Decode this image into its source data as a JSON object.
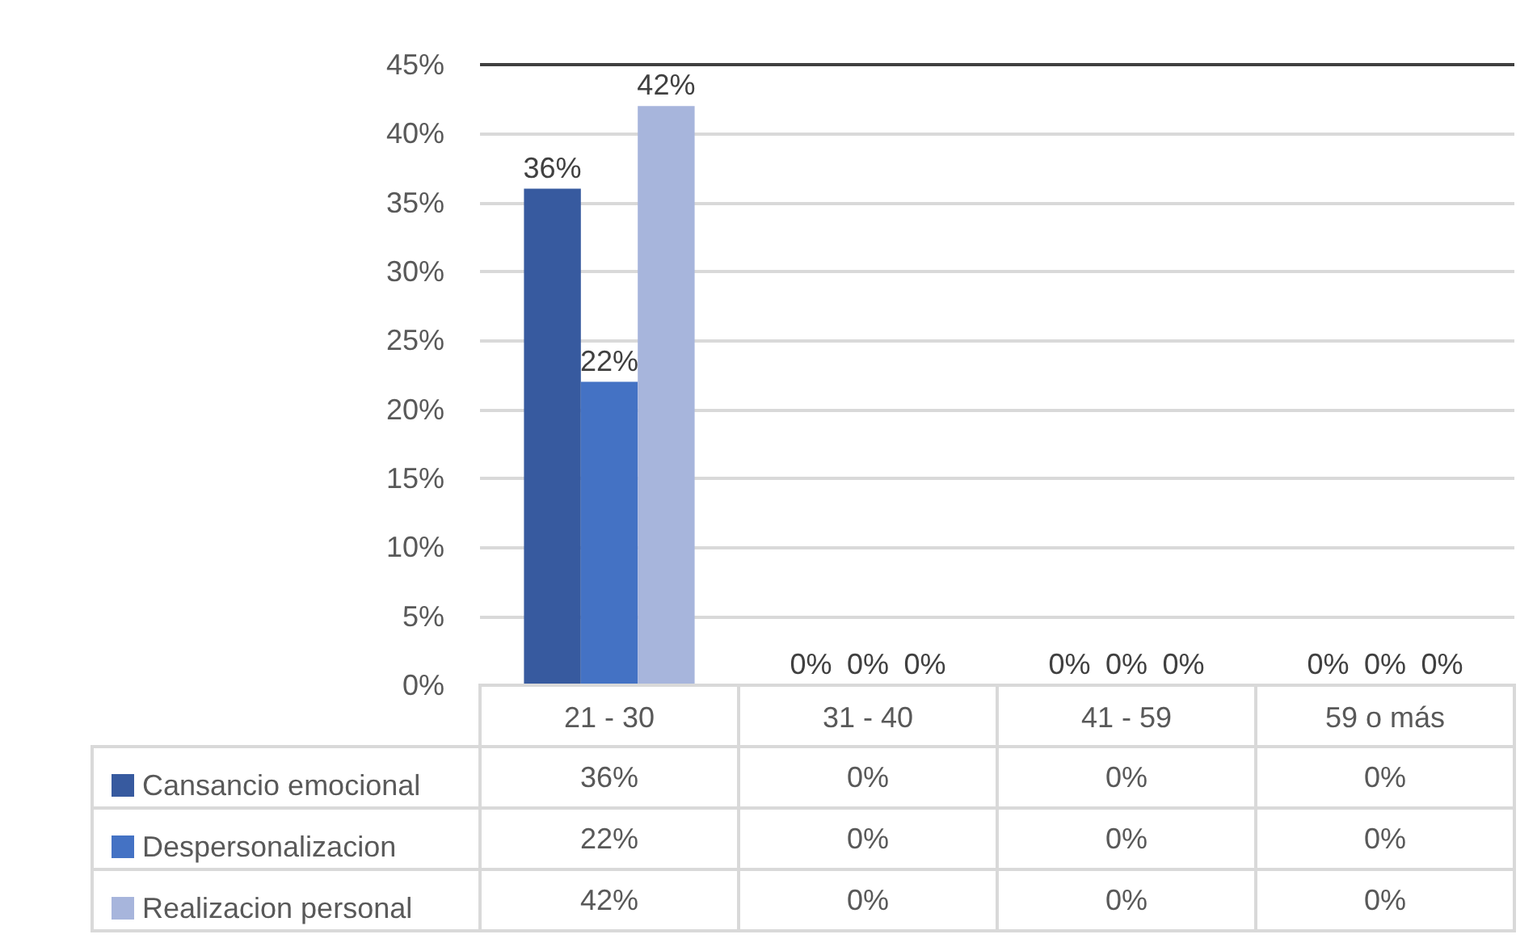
{
  "chart_data": {
    "type": "bar",
    "categories": [
      "21 - 30",
      "31 - 40",
      "41 - 59",
      "59 o más"
    ],
    "series": [
      {
        "name": "Cansancio emocional",
        "color": "#375a9f",
        "values": [
          36,
          0,
          0,
          0
        ],
        "value_labels": [
          "36%",
          "0%",
          "0%",
          "0%"
        ]
      },
      {
        "name": "Despersonalizacion",
        "color": "#4472c4",
        "values": [
          22,
          0,
          0,
          0
        ],
        "value_labels": [
          "22%",
          "0%",
          "0%",
          "0%"
        ]
      },
      {
        "name": "Realizacion personal",
        "color": "#a7b5dc",
        "values": [
          42,
          0,
          0,
          0
        ],
        "value_labels": [
          "42%",
          "0%",
          "0%",
          "0%"
        ]
      }
    ],
    "ylim": [
      0,
      45
    ],
    "yticks": [
      {
        "value": 0,
        "label": "0%"
      },
      {
        "value": 5,
        "label": "5%"
      },
      {
        "value": 10,
        "label": "10%"
      },
      {
        "value": 15,
        "label": "15%"
      },
      {
        "value": 20,
        "label": "20%"
      },
      {
        "value": 25,
        "label": "25%"
      },
      {
        "value": 30,
        "label": "30%"
      },
      {
        "value": 35,
        "label": "35%"
      },
      {
        "value": 40,
        "label": "40%"
      },
      {
        "value": 45,
        "label": "45%"
      }
    ],
    "grid": "y",
    "legend": "bottom left"
  }
}
